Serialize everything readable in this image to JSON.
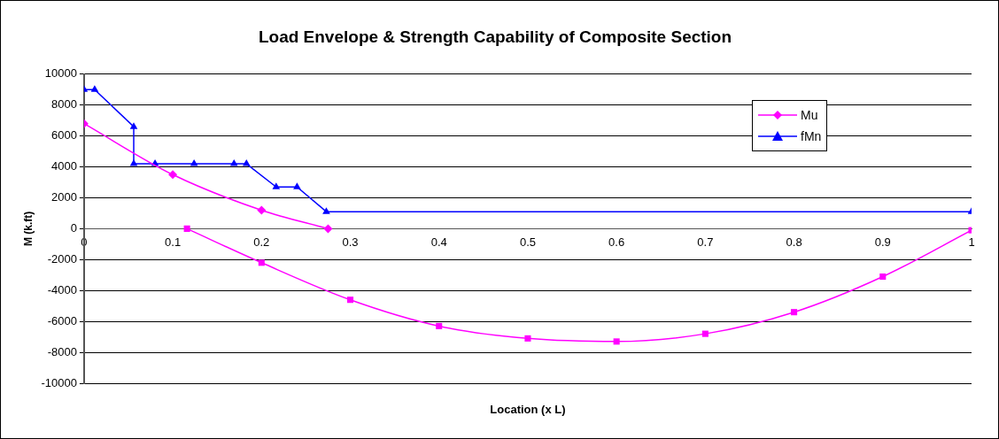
{
  "chart_data": {
    "type": "line",
    "title": "Load Envelope & Strength Capability of Composite Section",
    "xlabel": "Location (x L)",
    "ylabel": "M (k.ft)",
    "xlim": [
      0,
      1
    ],
    "xticks": [
      0,
      0.1,
      0.2,
      0.3,
      0.4,
      0.5,
      0.6,
      0.7,
      0.8,
      0.9,
      1
    ],
    "ylim": [
      -10000,
      10000
    ],
    "yticks": [
      -10000,
      -8000,
      -6000,
      -4000,
      -2000,
      0,
      2000,
      4000,
      6000,
      8000,
      10000
    ],
    "grid": "y",
    "legend": "top right",
    "series": [
      {
        "name": "Mu",
        "color": "#ff00ff",
        "marker": "diamond",
        "x": [
          0,
          0.1,
          0.2,
          0.275
        ],
        "values": [
          6800,
          3500,
          1200,
          0
        ]
      },
      {
        "name": "fMn",
        "color": "#0000ff",
        "marker": "triangle",
        "x": [
          0,
          0.012,
          0.056,
          0.056,
          0.08,
          0.124,
          0.169,
          0.183,
          0.2165,
          0.24,
          0.273,
          1
        ],
        "values": [
          9000,
          9000,
          6600,
          4200,
          4200,
          4200,
          4200,
          4200,
          2700,
          2700,
          1100,
          1100
        ]
      },
      {
        "color": "#ff00ff",
        "marker": "square",
        "x": [
          0.116,
          0.2,
          0.3,
          0.4,
          0.5,
          0.6,
          0.7,
          0.8,
          0.9,
          1
        ],
        "values": [
          0,
          -2200,
          -4600,
          -6300,
          -7100,
          -7300,
          -6800,
          -5400,
          -3100,
          -100
        ]
      }
    ]
  }
}
